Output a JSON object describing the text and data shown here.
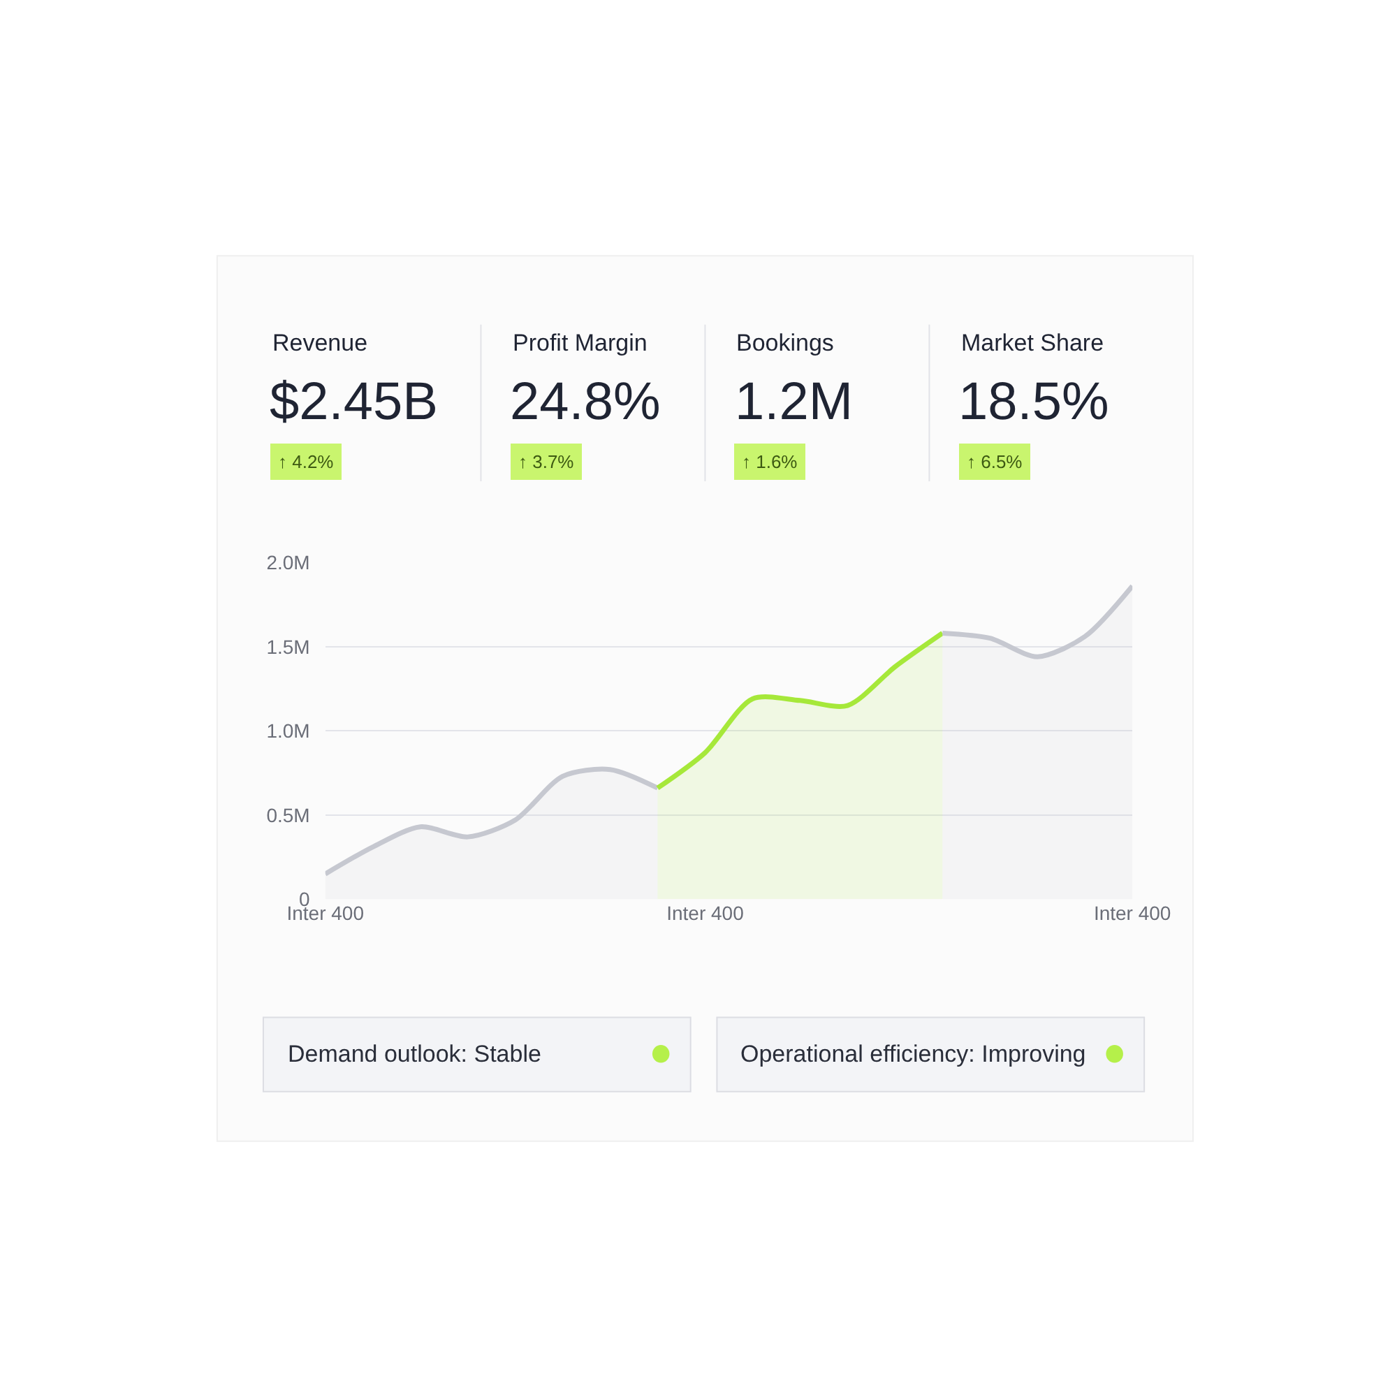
{
  "chart_data": {
    "type": "area",
    "annotations": [
      "Revenue",
      "$2.45B",
      "↑ 4.2%",
      "Profit Margin",
      "24.8%",
      "↑ 3.7%",
      "Bookings",
      "1.2M",
      "↑ 1.6%",
      "Market Share",
      "18.5%",
      "↑ 6.5%",
      "Demand outlook: Stable",
      "Operational efficiency: Improving"
    ],
    "categories": [
      "Inter 400",
      null,
      null,
      null,
      null,
      null,
      null,
      null,
      "Inter 400",
      null,
      null,
      null,
      null,
      null,
      null,
      null,
      null,
      "Inter 400"
    ],
    "series": [
      {
        "color": "#c6c8d0",
        "values": [
          0.15,
          0.31,
          0.43,
          0.37,
          0.47,
          0.73,
          0.77,
          0.66,
          null,
          null,
          null,
          null,
          null,
          null,
          null,
          null,
          null,
          null
        ]
      },
      {
        "color": "#a6e83a",
        "values": [
          null,
          null,
          null,
          null,
          null,
          null,
          null,
          0.66,
          0.87,
          1.19,
          1.18,
          1.15,
          1.38,
          1.58,
          null,
          null,
          null,
          null
        ]
      },
      {
        "color": "#c6c8d0",
        "values": [
          null,
          null,
          null,
          null,
          null,
          null,
          null,
          null,
          null,
          null,
          null,
          null,
          null,
          1.58,
          1.55,
          1.44,
          1.56,
          1.86
        ]
      }
    ],
    "ylim": [
      0,
      2.0
    ],
    "yticks": [
      0,
      {
        "value": 0.5,
        "label": "0.5M"
      },
      {
        "value": 1.0,
        "label": "1.0M"
      },
      {
        "value": 1.5,
        "label": "1.5M"
      },
      {
        "value": 2.0,
        "label": "2.0M"
      }
    ],
    "grid": "y"
  }
}
